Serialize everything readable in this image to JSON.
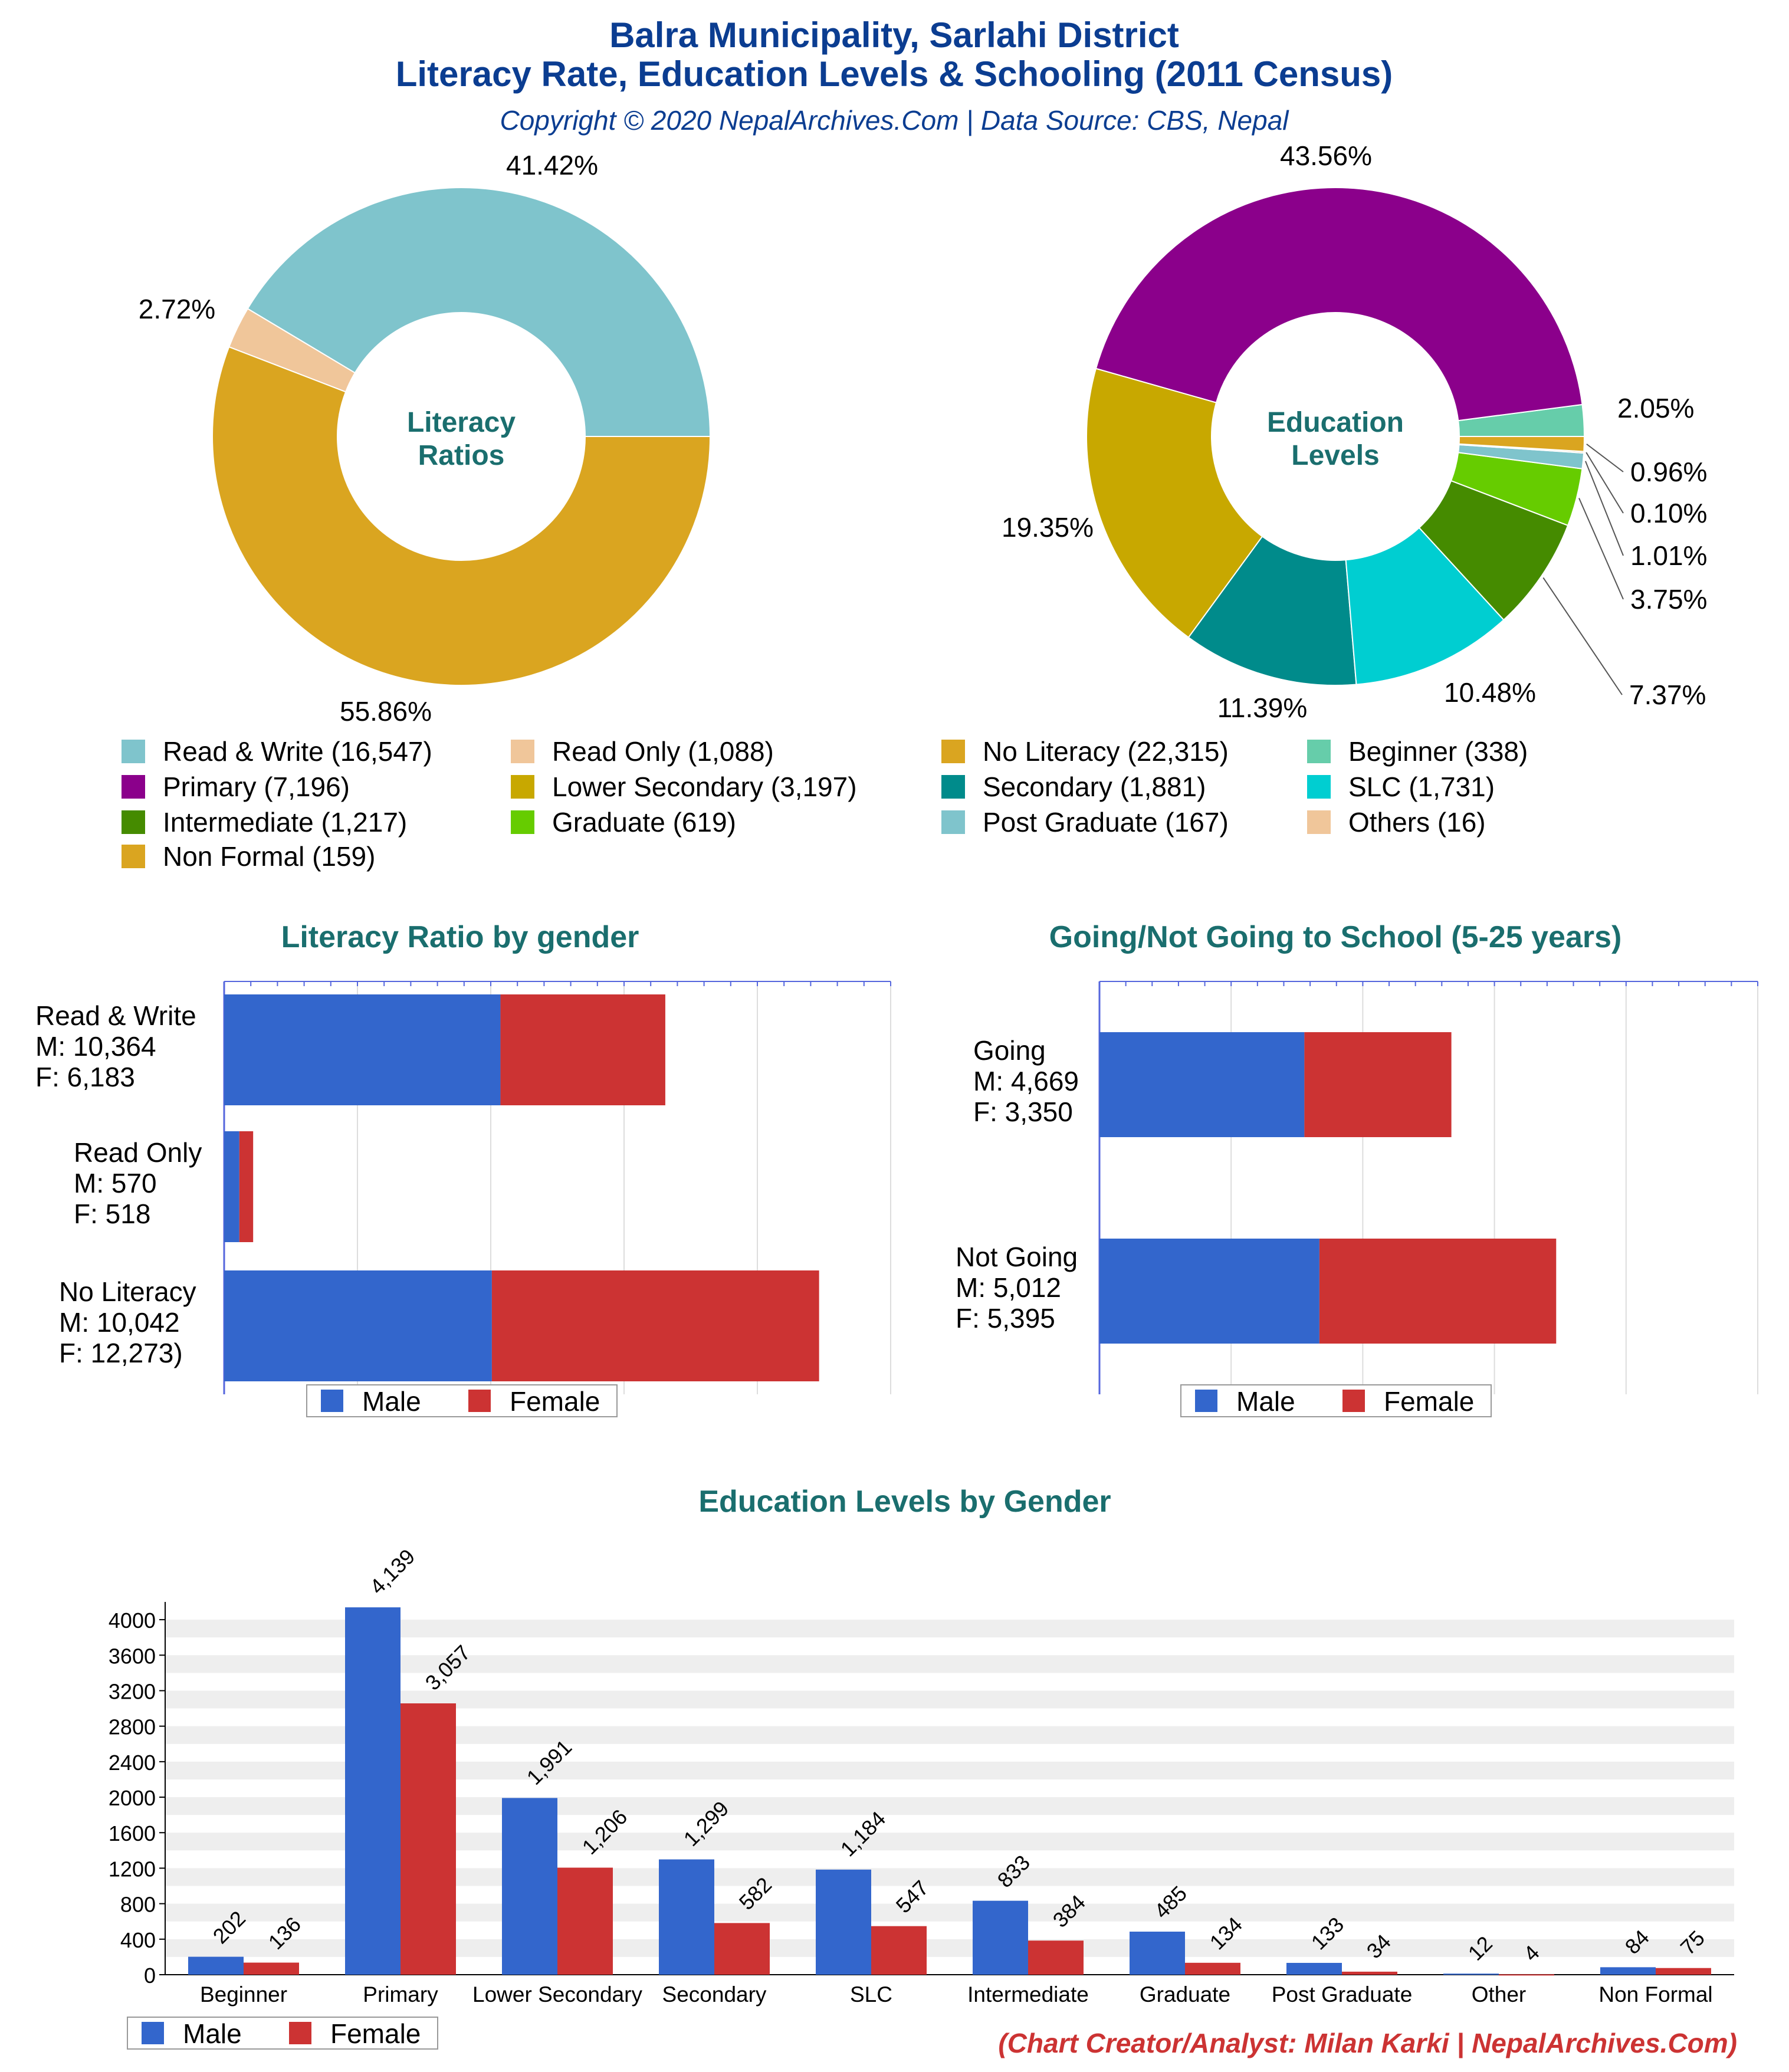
{
  "header": {
    "title_line1": "Balra Municipality, Sarlahi District",
    "title_line2": "Literacy Rate, Education Levels & Schooling (2011 Census)",
    "copyright": "Copyright © 2020 NepalArchives.Com | Data Source: CBS, Nepal"
  },
  "footer": {
    "credit": "(Chart Creator/Analyst: Milan Karki | NepalArchives.Com)"
  },
  "colors": {
    "title_blue": "#0b3d91",
    "teal_title": "#1a6e6e",
    "male": "#3366cc",
    "female": "#cc3333",
    "credit_red": "#cc3333"
  },
  "chart_data": [
    {
      "type": "pie",
      "center_label_line1": "Literacy",
      "center_label_line2": "Ratios",
      "slices": [
        {
          "label": "Read & Write (16,547)",
          "value": 16547,
          "percent_label": "41.42%",
          "color": "#7fc4cc"
        },
        {
          "label": "Read Only (1,088)",
          "value": 1088,
          "percent_label": "2.72%",
          "color": "#f0c69a"
        },
        {
          "label": "No Literacy (22,315)",
          "value": 22315,
          "percent_label": "55.86%",
          "color": "#daa520"
        }
      ]
    },
    {
      "type": "pie",
      "center_label_line1": "Education",
      "center_label_line2": "Levels",
      "slices": [
        {
          "label": "Beginner (338)",
          "value": 338,
          "percent_label": "2.05%",
          "color": "#66cdaa"
        },
        {
          "label": "Primary (7,196)",
          "value": 7196,
          "percent_label": "43.56%",
          "color": "#8b008b"
        },
        {
          "label": "Lower Secondary (3,197)",
          "value": 3197,
          "percent_label": "19.35%",
          "color": "#c8a800"
        },
        {
          "label": "Secondary (1,881)",
          "value": 1881,
          "percent_label": "11.39%",
          "color": "#008b8b"
        },
        {
          "label": "SLC (1,731)",
          "value": 1731,
          "percent_label": "10.48%",
          "color": "#00ced1"
        },
        {
          "label": "Intermediate (1,217)",
          "value": 1217,
          "percent_label": "7.37%",
          "color": "#458b00"
        },
        {
          "label": "Graduate (619)",
          "value": 619,
          "percent_label": "3.75%",
          "color": "#66cc00"
        },
        {
          "label": "Post Graduate (167)",
          "value": 167,
          "percent_label": "1.01%",
          "color": "#7fc4cc"
        },
        {
          "label": "Others (16)",
          "value": 16,
          "percent_label": "0.10%",
          "color": "#f0c69a"
        },
        {
          "label": "Non Formal (159)",
          "value": 159,
          "percent_label": "0.96%",
          "color": "#daa520"
        }
      ]
    },
    {
      "type": "bar",
      "orientation": "horizontal",
      "stacked": true,
      "title": "Literacy Ratio by gender",
      "categories": [
        [
          "Read & Write",
          "M: 10,364",
          "F: 6,183"
        ],
        [
          "Read Only",
          "M: 570",
          "F: 518"
        ],
        [
          "No Literacy",
          "M: 10,042",
          "F: 12,273)"
        ]
      ],
      "series": [
        {
          "name": "Male",
          "values": [
            10364,
            570,
            10042
          ]
        },
        {
          "name": "Female",
          "values": [
            6183,
            518,
            12273
          ]
        }
      ],
      "xlim": [
        0,
        25000
      ],
      "legend": "bottom"
    },
    {
      "type": "bar",
      "orientation": "horizontal",
      "stacked": true,
      "title": "Going/Not Going to School (5-25 years)",
      "categories": [
        [
          "Going",
          "M: 4,669",
          "F: 3,350"
        ],
        [
          "Not Going",
          "M: 5,012",
          "F: 5,395"
        ]
      ],
      "series": [
        {
          "name": "Male",
          "values": [
            4669,
            5012
          ]
        },
        {
          "name": "Female",
          "values": [
            3350,
            5395
          ]
        }
      ],
      "xlim": [
        0,
        15000
      ],
      "legend": "bottom"
    },
    {
      "type": "bar",
      "orientation": "vertical",
      "title": "Education Levels by Gender",
      "categories": [
        "Beginner",
        "Primary",
        "Lower Secondary",
        "Secondary",
        "SLC",
        "Intermediate",
        "Graduate",
        "Post Graduate",
        "Other",
        "Non Formal"
      ],
      "series": [
        {
          "name": "Male",
          "values": [
            202,
            4139,
            1991,
            1299,
            1184,
            833,
            485,
            133,
            12,
            84
          ],
          "labels": [
            "202",
            "4,139",
            "1,991",
            "1,299",
            "1,184",
            "833",
            "485",
            "133",
            "12",
            "84"
          ]
        },
        {
          "name": "Female",
          "values": [
            136,
            3057,
            1206,
            582,
            547,
            384,
            134,
            34,
            4,
            75
          ],
          "labels": [
            "136",
            "3,057",
            "1,206",
            "582",
            "547",
            "384",
            "134",
            "34",
            "4",
            "75"
          ]
        }
      ],
      "ylim": [
        0,
        4200
      ],
      "yticks": [
        "0",
        "400",
        "800",
        "1200",
        "1600",
        "2000",
        "2400",
        "2800",
        "3200",
        "3600",
        "4000"
      ],
      "legend": "bottom-left"
    }
  ]
}
